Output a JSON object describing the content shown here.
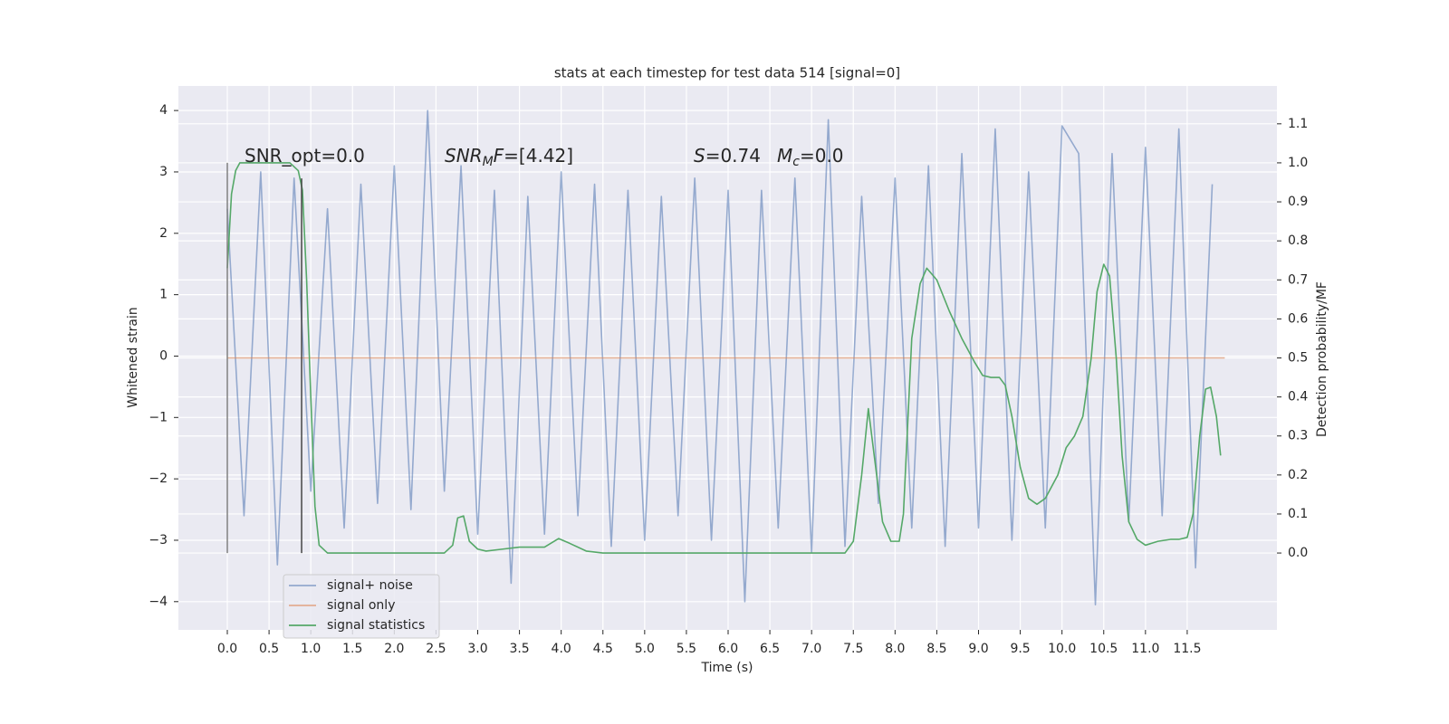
{
  "chart_data": {
    "type": "line",
    "title": "stats at each timestep for test data 514 [signal=0]",
    "xlabel": "Time (s)",
    "ylabel": "Whitened strain",
    "y2label": "Detection probability/MF",
    "annotations": [
      [
        {
          "text": "SNR_opt=0.0"
        }
      ],
      [
        {
          "text": "SNR",
          "style": "italic"
        },
        {
          "text": "M",
          "style": "sub"
        },
        {
          "text": "F",
          "style": "italic"
        },
        {
          "text": "=[4.42]"
        }
      ],
      [
        {
          "text": "S",
          "style": "italic"
        },
        {
          "text": "=0.74"
        }
      ],
      [
        {
          "text": "M",
          "style": "italic"
        },
        {
          "text": "c",
          "style": "sub"
        },
        {
          "text": "=0.0"
        }
      ]
    ],
    "xlim": [
      -0.586,
      12.575
    ],
    "ylim": [
      -4.46,
      4.4
    ],
    "y2lim": [
      -0.197,
      1.197
    ],
    "grid": true,
    "legend": "lower left",
    "xticks": [
      {
        "value": 0,
        "label": "0.0"
      },
      0.5,
      {
        "value": 1,
        "label": "1.0"
      },
      1.5,
      {
        "value": 2,
        "label": "2.0"
      },
      2.5,
      {
        "value": 3,
        "label": "3.0"
      },
      3.5,
      {
        "value": 4,
        "label": "4.0"
      },
      4.5,
      {
        "value": 5,
        "label": "5.0"
      },
      5.5,
      {
        "value": 6,
        "label": "6.0"
      },
      6.5,
      {
        "value": 7,
        "label": "7.0"
      },
      7.5,
      {
        "value": 8,
        "label": "8.0"
      },
      8.5,
      {
        "value": 9,
        "label": "9.0"
      },
      9.5,
      {
        "value": 10,
        "label": "10.0"
      },
      10.5,
      {
        "value": 11,
        "label": "11.0"
      },
      11.5
    ],
    "yticks": [
      {
        "value": -4,
        "label": "−4"
      },
      {
        "value": -3,
        "label": "−3"
      },
      {
        "value": -2,
        "label": "−2"
      },
      {
        "value": -1,
        "label": "−1"
      },
      0,
      1,
      2,
      3,
      4
    ],
    "y2ticks": [
      {
        "value": 0,
        "label": "0.0"
      },
      0.1,
      0.2,
      0.3,
      0.4,
      0.5,
      0.6,
      0.7,
      0.8,
      0.9,
      {
        "value": 1,
        "label": "1.0"
      },
      1.1
    ],
    "vlines": [
      {
        "x": 0,
        "y": [
          0,
          1
        ],
        "color": "#808080"
      },
      {
        "x": 0.89,
        "y": [
          0,
          0.96
        ],
        "color": "#444444"
      }
    ],
    "series": [
      {
        "name": "signal+ noise",
        "color": "#4c72b0",
        "alpha": 0.55,
        "x": [
          0,
          0.2,
          0.4,
          0.6,
          0.8,
          1,
          1.2,
          1.4,
          1.6,
          1.8,
          2,
          2.2,
          2.4,
          2.6,
          2.8,
          3,
          3.2,
          3.4,
          3.6,
          3.8,
          4,
          4.2,
          4.4,
          4.6,
          4.8,
          5,
          5.2,
          5.4,
          5.6,
          5.8,
          6,
          6.2,
          6.4,
          6.6,
          6.8,
          7,
          7.2,
          7.4,
          7.6,
          7.8,
          8,
          8.2,
          8.4,
          8.6,
          8.8,
          9,
          9.2,
          9.4,
          9.6,
          9.8,
          10,
          10.2,
          10.4,
          10.6,
          10.8,
          11,
          11.2,
          11.4,
          11.6,
          11.8
        ],
        "values": [
          2.4,
          -2.6,
          3.0,
          -3.4,
          2.9,
          -2.2,
          2.4,
          -2.8,
          2.8,
          -2.4,
          3.1,
          -2.5,
          4.0,
          -2.2,
          3.1,
          -2.9,
          2.7,
          -3.7,
          2.6,
          -2.9,
          3.0,
          -2.6,
          2.8,
          -3.1,
          2.7,
          -3.0,
          2.6,
          -2.6,
          2.9,
          -3.0,
          2.7,
          -4.0,
          2.7,
          -2.8,
          2.9,
          -3.2,
          3.85,
          -3.1,
          2.6,
          -2.4,
          2.9,
          -2.8,
          3.1,
          -3.1,
          3.3,
          -2.8,
          3.7,
          -3.0,
          3.0,
          -2.8,
          3.75,
          3.3,
          -4.05,
          3.3,
          -2.7,
          3.4,
          -2.6,
          3.7,
          -3.45,
          2.8
        ]
      },
      {
        "name": "signal only",
        "color": "#dd8452",
        "alpha": 0.6,
        "x": [
          0,
          11.95
        ],
        "values": [
          -0.03,
          -0.03
        ]
      },
      {
        "name": "signal statistics",
        "color": "#55a868",
        "alpha": 1,
        "axis": "y2",
        "x": [
          0,
          0.05,
          0.1,
          0.15,
          0.4,
          0.75,
          0.85,
          0.9,
          0.95,
          1.0,
          1.05,
          1.1,
          1.2,
          1.5,
          2.0,
          2.6,
          2.7,
          2.76,
          2.83,
          2.9,
          3.0,
          3.1,
          3.3,
          3.5,
          3.8,
          3.97,
          4.1,
          4.3,
          4.5,
          5.5,
          7.4,
          7.5,
          7.6,
          7.68,
          7.75,
          7.85,
          7.95,
          8.05,
          8.1,
          8.2,
          8.3,
          8.38,
          8.5,
          8.65,
          8.8,
          8.95,
          9.05,
          9.15,
          9.25,
          9.32,
          9.4,
          9.5,
          9.6,
          9.7,
          9.8,
          9.95,
          10.05,
          10.15,
          10.25,
          10.35,
          10.42,
          10.5,
          10.57,
          10.65,
          10.72,
          10.8,
          10.9,
          11.0,
          11.15,
          11.3,
          11.4,
          11.5,
          11.57,
          11.65,
          11.72,
          11.78,
          11.85,
          11.9
        ],
        "values": [
          0.73,
          0.92,
          0.98,
          1.0,
          1.0,
          1.0,
          0.98,
          0.93,
          0.7,
          0.4,
          0.12,
          0.02,
          0.0,
          0.0,
          0.0,
          0.0,
          0.02,
          0.09,
          0.095,
          0.03,
          0.01,
          0.005,
          0.01,
          0.015,
          0.015,
          0.037,
          0.025,
          0.005,
          0.0,
          0.0,
          0.0,
          0.03,
          0.2,
          0.37,
          0.25,
          0.08,
          0.03,
          0.03,
          0.1,
          0.55,
          0.69,
          0.73,
          0.7,
          0.62,
          0.55,
          0.49,
          0.455,
          0.45,
          0.45,
          0.43,
          0.35,
          0.22,
          0.14,
          0.125,
          0.14,
          0.2,
          0.27,
          0.3,
          0.35,
          0.5,
          0.67,
          0.74,
          0.71,
          0.5,
          0.25,
          0.08,
          0.035,
          0.02,
          0.03,
          0.035,
          0.035,
          0.04,
          0.1,
          0.3,
          0.42,
          0.425,
          0.35,
          0.25
        ]
      }
    ]
  }
}
